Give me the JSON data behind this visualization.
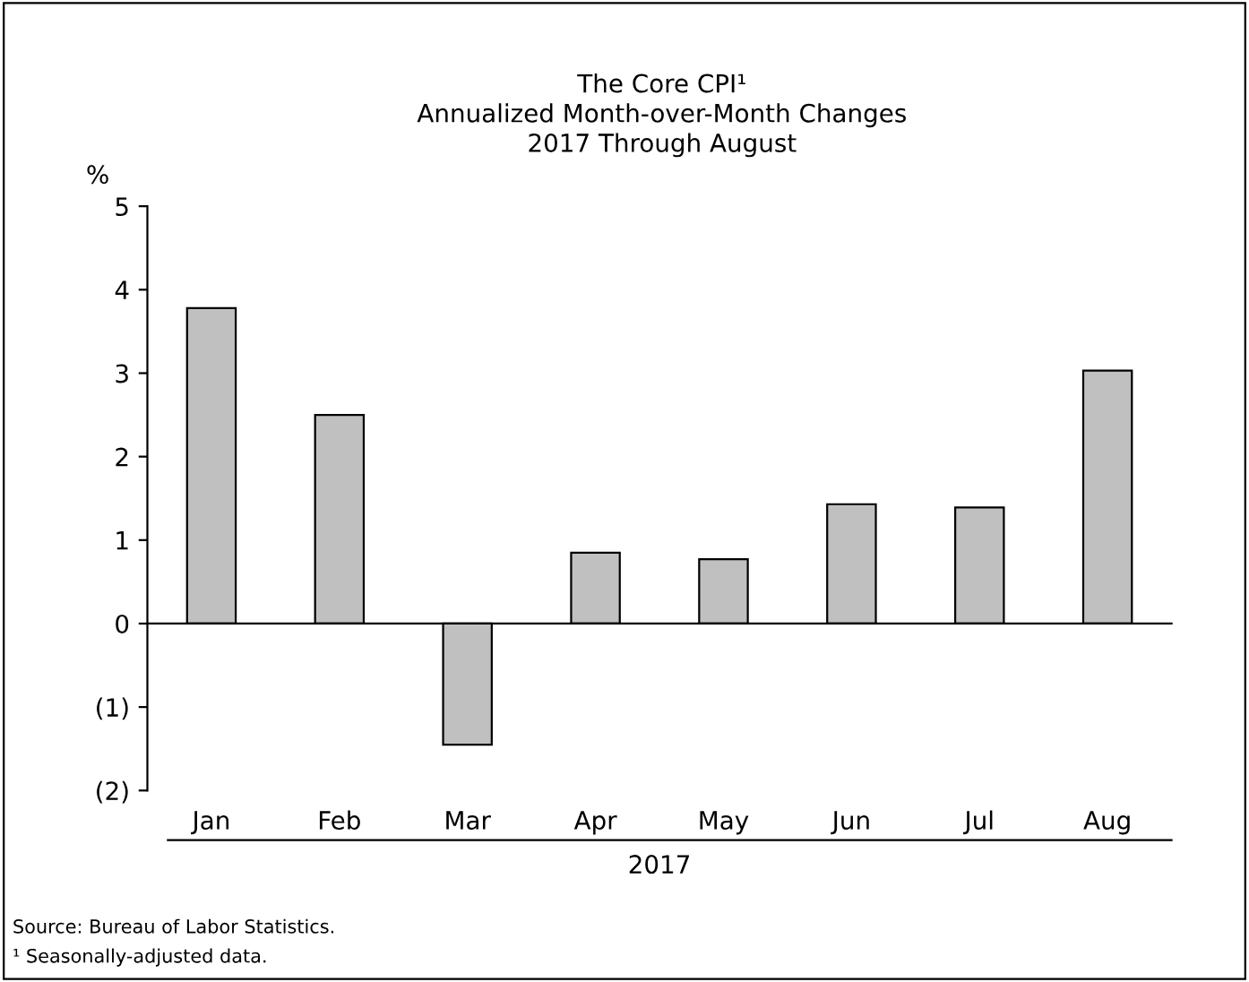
{
  "chart_data": {
    "type": "bar",
    "title": "The Core CPI¹\nAnnualized Month-over-Month Changes\n2017 Through August",
    "ylabel": "%",
    "xlabel": "2017",
    "categories": [
      "Jan",
      "Feb",
      "Mar",
      "Apr",
      "May",
      "Jun",
      "Jul",
      "Aug"
    ],
    "values": [
      3.78,
      2.5,
      -1.45,
      0.85,
      0.77,
      1.43,
      1.39,
      3.03
    ],
    "color": "#c0c0c0",
    "ylim": [
      -2,
      5
    ],
    "yticks": [
      {
        "value": -2,
        "label": "(2)"
      },
      {
        "value": -1,
        "label": "(1)"
      },
      0,
      1,
      2,
      3,
      4,
      5
    ],
    "legend": false,
    "annotations": [
      "Source: Bureau of Labor Statistics.",
      "¹ Seasonally-adjusted data."
    ]
  }
}
